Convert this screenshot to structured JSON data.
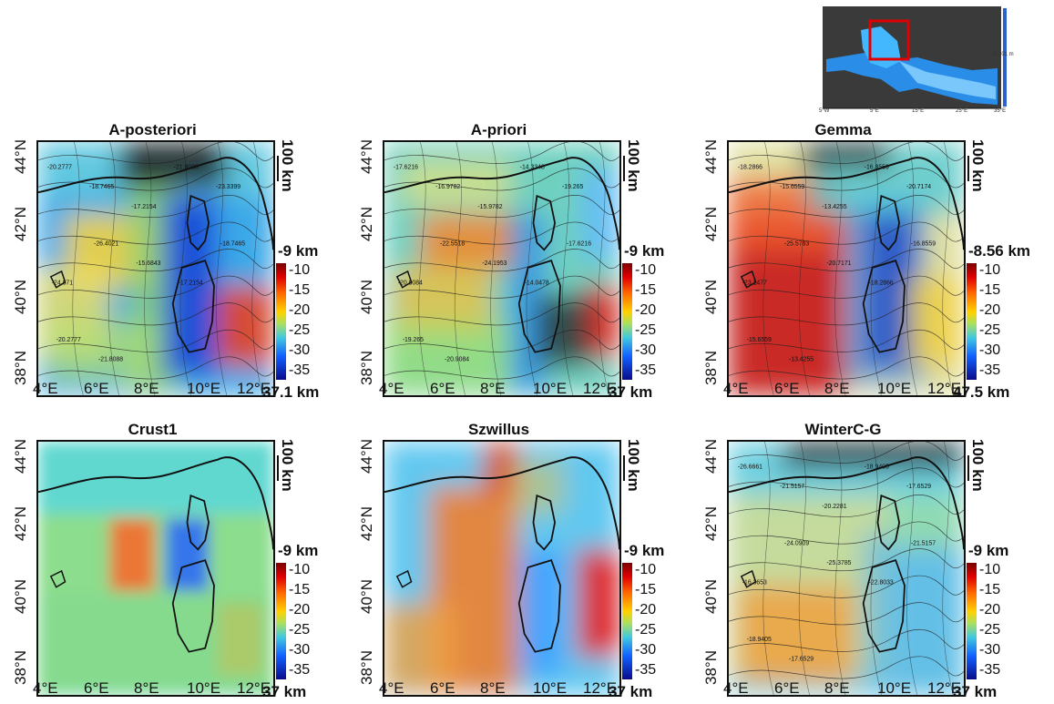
{
  "inset": {
    "ticks_bottom": [
      "5°W",
      "5°E",
      "15°E",
      "25°E",
      "35°E"
    ],
    "cb_labels": [
      "-8.801 m"
    ]
  },
  "panels": [
    {
      "title": "A-posteriori",
      "cb_top": "-9 km",
      "cb_bottom": "37.1 km",
      "style": "post"
    },
    {
      "title": "A-priori",
      "cb_top": "-9 km",
      "cb_bottom": "37 km",
      "style": "prior"
    },
    {
      "title": "Gemma",
      "cb_top": "-8.56 km",
      "cb_bottom": "47.5 km",
      "style": "gemma"
    },
    {
      "title": "Crust1",
      "cb_top": "-9 km",
      "cb_bottom": "37 km",
      "style": "crust"
    },
    {
      "title": "Szwillus",
      "cb_top": "-9 km",
      "cb_bottom": "37 km",
      "style": "szw"
    },
    {
      "title": "WinterC-G",
      "cb_top": "-9 km",
      "cb_bottom": "37 km",
      "style": "winter"
    }
  ],
  "common": {
    "lat_labels": [
      "44°N",
      "42°N",
      "40°N",
      "38°N"
    ],
    "lon_labels": [
      "4°E",
      "6°E",
      "8°E",
      "10°E",
      "12°E"
    ],
    "scale_label": "100 km",
    "cb_ticks": [
      "-10",
      "-15",
      "-20",
      "-25",
      "-30",
      "-35"
    ]
  },
  "contour_labels": {
    "post": [
      "-20.2777",
      "-18.7465",
      "-17.2154",
      "-21.8088",
      "-23.3399",
      "-24.871",
      "-26.4021",
      "-15.6843",
      "-17.2154",
      "-18.7465",
      "-20.2777",
      "-21.8088"
    ],
    "prior": [
      "-17.6216",
      "-16.9782",
      "-15.9782",
      "-14.3348",
      "-19.265",
      "-20.9084",
      "-22.5518",
      "-24.1953",
      "-14.0478",
      "-17.6216",
      "-19.265",
      "-20.9084"
    ],
    "gemma": [
      "-18.2866",
      "-15.6559",
      "-13.4255",
      "-16.8559",
      "-20.7174",
      "-23.1477",
      "-25.5783",
      "-20.7171",
      "-18.2866",
      "-16.8559",
      "-15.6559",
      "-13.4255"
    ],
    "winter": [
      "-26.6661",
      "-21.5157",
      "-20.2281",
      "-18.9405",
      "-17.6529",
      "-16.3653",
      "-24.0909",
      "-25.3785",
      "-22.8033",
      "-21.5157",
      "-18.9405",
      "-17.6529"
    ]
  }
}
